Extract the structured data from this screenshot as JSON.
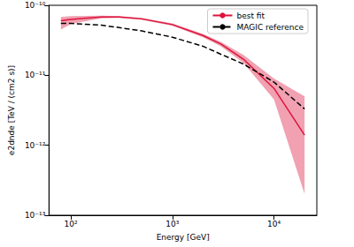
{
  "chart_data": {
    "type": "line",
    "xlabel": "Energy [GeV]",
    "ylabel": "e2dnde [TeV / (cm2 s)]",
    "log": true,
    "grid": false,
    "legend": "upper right",
    "xlim": [
      61,
      26400
    ],
    "ylim": [
      1e-13,
      1e-10
    ],
    "xticks": [
      {
        "value": 100,
        "label": "10²"
      },
      {
        "value": 1000,
        "label": "10³"
      },
      {
        "value": 10000,
        "label": "10⁴"
      }
    ],
    "yticks": [
      {
        "value": 1e-13,
        "label": "10⁻¹³"
      },
      {
        "value": 1e-12,
        "label": "10⁻¹²"
      },
      {
        "value": 1e-11,
        "label": "10⁻¹¹"
      },
      {
        "value": 1e-10,
        "label": "10⁻¹⁰"
      }
    ],
    "x": [
      80,
      100,
      200,
      300,
      500,
      1000,
      2000,
      3000,
      5000,
      10000,
      20000
    ],
    "series": [
      {
        "name": "best fit",
        "color": "#dc143c",
        "line_style": "solid",
        "values": [
          6e-11,
          6.3e-11,
          6.8e-11,
          6.8e-11,
          6.4e-11,
          5.3e-11,
          3.7e-11,
          2.8e-11,
          1.7e-11,
          6.5e-12,
          1.4e-12
        ],
        "lower": [
          4.5e-11,
          5.4e-11,
          6.5e-11,
          6.6e-11,
          6.2e-11,
          5.1e-11,
          3.5e-11,
          2.6e-11,
          1.5e-11,
          4.5e-12,
          2e-13
        ],
        "upper": [
          6.8e-11,
          7e-11,
          7.1e-11,
          7e-11,
          6.6e-11,
          5.5e-11,
          3.9e-11,
          3e-11,
          1.95e-11,
          9e-12,
          5e-12
        ]
      },
      {
        "name": "MAGIC reference",
        "color": "#000000",
        "line_style": "dashed",
        "values": [
          5.5e-11,
          5.5e-11,
          5.2e-11,
          4.8e-11,
          4.3e-11,
          3.5e-11,
          2.6e-11,
          2e-11,
          1.45e-11,
          8e-12,
          3.3e-12
        ]
      }
    ]
  }
}
